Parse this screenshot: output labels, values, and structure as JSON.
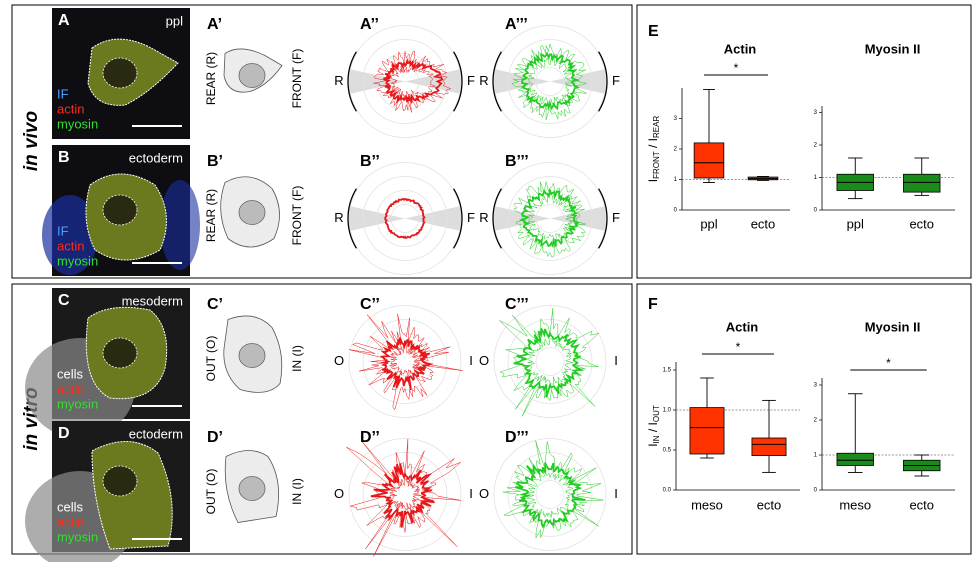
{
  "sections": [
    {
      "label": "in vivo",
      "rows": [
        {
          "image_label": "A",
          "image_note": "ppl",
          "stains": [
            "IF",
            "actin",
            "myosin"
          ],
          "sketch_label": "A’",
          "sketch_left": "REAR (R)",
          "sketch_right": "FRONT (F)",
          "polar": [
            {
              "label": "A’’",
              "left": "R",
              "right": "F"
            },
            {
              "label": "A’’’",
              "left": "R",
              "right": "F"
            }
          ]
        },
        {
          "image_label": "B",
          "image_note": "ectoderm",
          "stains": [
            "IF",
            "actin",
            "myosin"
          ],
          "sketch_label": "B’",
          "sketch_left": "REAR (R)",
          "sketch_right": "FRONT (F)",
          "polar": [
            {
              "label": "B’’",
              "left": "R",
              "right": "F"
            },
            {
              "label": "B’’’",
              "left": "R",
              "right": "F"
            }
          ]
        }
      ]
    },
    {
      "label": "in vitro",
      "rows": [
        {
          "image_label": "C",
          "image_note": "mesoderm",
          "stains": [
            "cells",
            "actin",
            "myosin"
          ],
          "sketch_label": "C’",
          "sketch_left": "OUT (O)",
          "sketch_right": "IN (I)",
          "polar": [
            {
              "label": "C’’",
              "left": "O",
              "right": "I"
            },
            {
              "label": "C’’’",
              "left": "O",
              "right": "I"
            }
          ]
        },
        {
          "image_label": "D",
          "image_note": "ectoderm",
          "stains": [
            "cells",
            "actin",
            "myosin"
          ],
          "sketch_label": "D’",
          "sketch_left": "OUT (O)",
          "sketch_right": "IN (I)",
          "polar": [
            {
              "label": "D’’",
              "left": "O",
              "right": "I"
            },
            {
              "label": "D’’’",
              "left": "O",
              "right": "I"
            }
          ]
        }
      ]
    }
  ],
  "charts": [
    {
      "type": "box",
      "label": "E",
      "ylabel": [
        "I",
        "FRONT",
        " / I",
        "REAR"
      ],
      "panels": [
        {
          "title": "Actin",
          "color": "#ff3300",
          "categories": [
            "ppl",
            "ecto"
          ],
          "ylim": [
            0,
            4
          ],
          "yticks": [
            0,
            1,
            2,
            3
          ],
          "reference": 1,
          "significance": "*",
          "boxes": [
            {
              "low": 0.9,
              "q1": 1.05,
              "median": 1.55,
              "q3": 2.2,
              "high": 3.95
            },
            {
              "low": 0.97,
              "q1": 0.99,
              "median": 1.03,
              "q3": 1.08,
              "high": 1.1
            }
          ]
        },
        {
          "title": "Myosin II",
          "color": "#1a8a1a",
          "categories": [
            "ppl",
            "ecto"
          ],
          "ylim": [
            0,
            3.2
          ],
          "yticks": [
            0,
            1,
            2,
            3
          ],
          "reference": 1,
          "boxes": [
            {
              "low": 0.35,
              "q1": 0.6,
              "median": 0.85,
              "q3": 1.1,
              "high": 1.6
            },
            {
              "low": 0.45,
              "q1": 0.55,
              "median": 0.85,
              "q3": 1.1,
              "high": 1.6
            }
          ]
        }
      ]
    },
    {
      "type": "box",
      "label": "F",
      "ylabel": [
        "I",
        "IN",
        " / I",
        "OUT"
      ],
      "panels": [
        {
          "title": "Actin",
          "color": "#ff3300",
          "categories": [
            "meso",
            "ecto"
          ],
          "ylim": [
            0,
            1.6
          ],
          "yticks": [
            {
              "value": 0,
              "label": "0.0"
            },
            {
              "value": 0.5,
              "label": "0.5"
            },
            {
              "value": 1,
              "label": "1.0"
            },
            {
              "value": 1.5,
              "label": "1.5"
            }
          ],
          "reference": 1,
          "significance": "*",
          "boxes": [
            {
              "low": 0.4,
              "q1": 0.45,
              "median": 0.78,
              "q3": 1.03,
              "high": 1.4
            },
            {
              "low": 0.22,
              "q1": 0.43,
              "median": 0.57,
              "q3": 0.65,
              "high": 1.12
            }
          ]
        },
        {
          "title": "Myosin II",
          "color": "#1a8a1a",
          "categories": [
            "meso",
            "ecto"
          ],
          "ylim": [
            0,
            3.2
          ],
          "yticks": [
            0,
            1,
            2,
            3
          ],
          "reference": 1,
          "significance": "*",
          "boxes": [
            {
              "low": 0.5,
              "q1": 0.7,
              "median": 0.85,
              "q3": 1.05,
              "high": 2.75
            },
            {
              "low": 0.4,
              "q1": 0.55,
              "median": 0.7,
              "q3": 0.85,
              "high": 1.0
            }
          ]
        }
      ]
    }
  ]
}
